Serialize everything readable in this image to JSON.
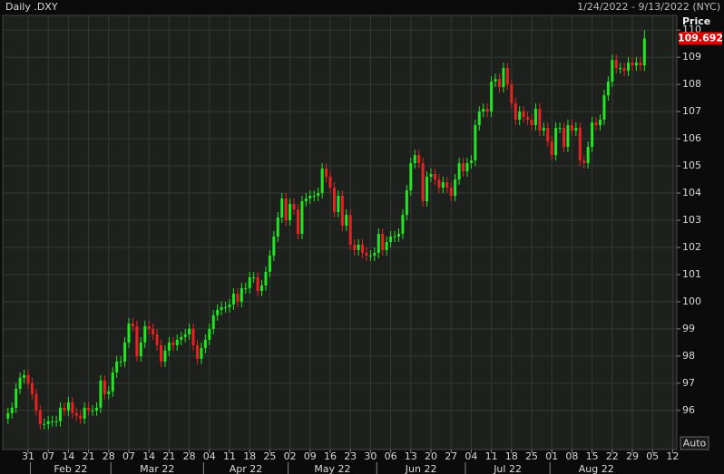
{
  "chart_data": {
    "type": "candlestick",
    "title": "Daily .DXY",
    "subtitle": "1/24/2022 - 9/13/2022 (NYC)",
    "y_label": "Price",
    "scale_button": "Auto",
    "up_color": "#22e622",
    "down_color": "#e62222",
    "grid": true,
    "ylim": [
      94.56,
      110.54
    ],
    "yticks": [
      96,
      97,
      98,
      99,
      100,
      101,
      102,
      103,
      104,
      105,
      106,
      107,
      108,
      109,
      110
    ],
    "xticks": [
      {
        "value": "2022-01-31",
        "label": "31"
      },
      {
        "value": "2022-02-07",
        "label": "07"
      },
      {
        "value": "2022-02-14",
        "label": "14"
      },
      {
        "value": "2022-02-21",
        "label": "21"
      },
      {
        "value": "2022-02-28",
        "label": "28"
      },
      {
        "value": "2022-03-07",
        "label": "07"
      },
      {
        "value": "2022-03-14",
        "label": "14"
      },
      {
        "value": "2022-03-21",
        "label": "21"
      },
      {
        "value": "2022-03-28",
        "label": "28"
      },
      {
        "value": "2022-04-04",
        "label": "04"
      },
      {
        "value": "2022-04-11",
        "label": "11"
      },
      {
        "value": "2022-04-18",
        "label": "18"
      },
      {
        "value": "2022-04-25",
        "label": "25"
      },
      {
        "value": "2022-05-02",
        "label": "02"
      },
      {
        "value": "2022-05-09",
        "label": "09"
      },
      {
        "value": "2022-05-16",
        "label": "16"
      },
      {
        "value": "2022-05-23",
        "label": "23"
      },
      {
        "value": "2022-05-30",
        "label": "30"
      },
      {
        "value": "2022-06-06",
        "label": "06"
      },
      {
        "value": "2022-06-13",
        "label": "13"
      },
      {
        "value": "2022-06-20",
        "label": "20"
      },
      {
        "value": "2022-06-27",
        "label": "27"
      },
      {
        "value": "2022-07-04",
        "label": "04"
      },
      {
        "value": "2022-07-11",
        "label": "11"
      },
      {
        "value": "2022-07-18",
        "label": "18"
      },
      {
        "value": "2022-07-25",
        "label": "25"
      },
      {
        "value": "2022-08-01",
        "label": "01"
      },
      {
        "value": "2022-08-08",
        "label": "08"
      },
      {
        "value": "2022-08-15",
        "label": "15"
      },
      {
        "value": "2022-08-22",
        "label": "22"
      },
      {
        "value": "2022-08-29",
        "label": "29"
      },
      {
        "value": "2022-09-05",
        "label": "05"
      },
      {
        "value": "2022-09-12",
        "label": "12"
      }
    ],
    "months": [
      {
        "value": "2022-02",
        "label": "Feb 22"
      },
      {
        "value": "2022-03",
        "label": "Mar 22"
      },
      {
        "value": "2022-04",
        "label": "Apr 22"
      },
      {
        "value": "2022-05",
        "label": "May 22"
      },
      {
        "value": "2022-06",
        "label": "Jun 22"
      },
      {
        "value": "2022-07",
        "label": "Jul 22"
      },
      {
        "value": "2022-08",
        "label": "Aug 22"
      }
    ],
    "x": [
      "2022-01-24",
      "2022-01-25",
      "2022-01-26",
      "2022-01-27",
      "2022-01-28",
      "2022-01-31",
      "2022-02-01",
      "2022-02-02",
      "2022-02-03",
      "2022-02-04",
      "2022-02-07",
      "2022-02-08",
      "2022-02-09",
      "2022-02-10",
      "2022-02-11",
      "2022-02-14",
      "2022-02-15",
      "2022-02-16",
      "2022-02-17",
      "2022-02-18",
      "2022-02-21",
      "2022-02-22",
      "2022-02-23",
      "2022-02-24",
      "2022-02-25",
      "2022-02-28",
      "2022-03-01",
      "2022-03-02",
      "2022-03-03",
      "2022-03-04",
      "2022-03-07",
      "2022-03-08",
      "2022-03-09",
      "2022-03-10",
      "2022-03-11",
      "2022-03-14",
      "2022-03-15",
      "2022-03-16",
      "2022-03-17",
      "2022-03-18",
      "2022-03-21",
      "2022-03-22",
      "2022-03-23",
      "2022-03-24",
      "2022-03-25",
      "2022-03-28",
      "2022-03-29",
      "2022-03-30",
      "2022-03-31",
      "2022-04-01",
      "2022-04-04",
      "2022-04-05",
      "2022-04-06",
      "2022-04-07",
      "2022-04-08",
      "2022-04-11",
      "2022-04-12",
      "2022-04-13",
      "2022-04-14",
      "2022-04-15",
      "2022-04-18",
      "2022-04-19",
      "2022-04-20",
      "2022-04-21",
      "2022-04-22",
      "2022-04-25",
      "2022-04-26",
      "2022-04-27",
      "2022-04-28",
      "2022-04-29",
      "2022-05-02",
      "2022-05-03",
      "2022-05-04",
      "2022-05-05",
      "2022-05-06",
      "2022-05-09",
      "2022-05-10",
      "2022-05-11",
      "2022-05-12",
      "2022-05-13",
      "2022-05-16",
      "2022-05-17",
      "2022-05-18",
      "2022-05-19",
      "2022-05-20",
      "2022-05-23",
      "2022-05-24",
      "2022-05-25",
      "2022-05-26",
      "2022-05-27",
      "2022-05-30",
      "2022-05-31",
      "2022-06-01",
      "2022-06-02",
      "2022-06-03",
      "2022-06-06",
      "2022-06-07",
      "2022-06-08",
      "2022-06-09",
      "2022-06-10",
      "2022-06-13",
      "2022-06-14",
      "2022-06-15",
      "2022-06-16",
      "2022-06-17",
      "2022-06-20",
      "2022-06-21",
      "2022-06-22",
      "2022-06-23",
      "2022-06-24",
      "2022-06-27",
      "2022-06-28",
      "2022-06-29",
      "2022-06-30",
      "2022-07-01",
      "2022-07-04",
      "2022-07-05",
      "2022-07-06",
      "2022-07-07",
      "2022-07-08",
      "2022-07-11",
      "2022-07-12",
      "2022-07-13",
      "2022-07-14",
      "2022-07-15",
      "2022-07-18",
      "2022-07-19",
      "2022-07-20",
      "2022-07-21",
      "2022-07-22",
      "2022-07-25",
      "2022-07-26",
      "2022-07-27",
      "2022-07-28",
      "2022-07-29",
      "2022-08-01",
      "2022-08-02",
      "2022-08-03",
      "2022-08-04",
      "2022-08-05",
      "2022-08-08",
      "2022-08-09",
      "2022-08-10",
      "2022-08-11",
      "2022-08-12",
      "2022-08-15",
      "2022-08-16",
      "2022-08-17",
      "2022-08-18",
      "2022-08-19",
      "2022-08-22",
      "2022-08-23",
      "2022-08-24",
      "2022-08-25",
      "2022-08-26",
      "2022-08-29",
      "2022-08-30",
      "2022-08-31",
      "2022-09-01"
    ],
    "open": [
      95.7,
      95.9,
      96.1,
      96.8,
      97.2,
      97.3,
      97.0,
      96.6,
      96.0,
      95.5,
      95.5,
      95.6,
      95.6,
      95.6,
      96.1,
      96.0,
      96.3,
      95.9,
      95.8,
      95.7,
      96.1,
      96.0,
      96.0,
      96.1,
      97.1,
      96.6,
      96.7,
      97.4,
      97.8,
      97.8,
      98.5,
      99.2,
      99.1,
      98.0,
      98.5,
      99.1,
      99.0,
      98.8,
      98.4,
      97.8,
      98.2,
      98.5,
      98.4,
      98.6,
      98.7,
      98.8,
      99.0,
      98.4,
      97.9,
      98.3,
      98.6,
      99.0,
      99.5,
      99.7,
      99.8,
      99.8,
      99.9,
      100.3,
      100.0,
      100.5,
      100.5,
      100.9,
      100.9,
      100.4,
      100.6,
      101.1,
      101.7,
      102.4,
      103.1,
      103.8,
      103.0,
      103.6,
      103.4,
      102.5,
      103.7,
      103.8,
      103.9,
      103.9,
      104.0,
      104.9,
      104.6,
      104.2,
      103.3,
      103.9,
      102.8,
      103.2,
      102.1,
      101.9,
      102.1,
      101.8,
      101.7,
      101.7,
      101.8,
      102.5,
      101.9,
      102.2,
      102.4,
      102.4,
      102.5,
      103.2,
      104.1,
      105.1,
      105.4,
      105.1,
      103.7,
      104.6,
      104.7,
      104.5,
      104.2,
      104.4,
      104.2,
      103.9,
      104.5,
      105.1,
      104.8,
      105.1,
      105.2,
      106.5,
      107.0,
      107.1,
      107.0,
      108.1,
      108.2,
      107.9,
      108.6,
      108.0,
      107.3,
      106.7,
      107.0,
      106.8,
      106.7,
      106.5,
      107.1,
      106.3,
      106.4,
      105.9,
      105.4,
      106.4,
      106.4,
      105.7,
      106.5,
      106.3,
      106.4,
      105.2,
      105.1,
      105.7,
      106.6,
      106.5,
      106.7,
      107.6,
      108.1,
      108.9,
      108.6,
      108.6,
      108.5,
      108.8,
      108.7,
      108.8,
      108.7
    ],
    "high": [
      96.1,
      96.3,
      97.0,
      97.4,
      97.5,
      97.5,
      97.2,
      96.8,
      96.2,
      95.7,
      95.8,
      95.8,
      95.8,
      96.3,
      96.3,
      96.5,
      96.5,
      96.1,
      96.0,
      96.3,
      96.3,
      96.2,
      96.3,
      97.3,
      97.3,
      96.9,
      97.6,
      98.0,
      98.0,
      98.7,
      99.4,
      99.4,
      99.3,
      98.7,
      99.3,
      99.3,
      99.2,
      99.0,
      98.6,
      98.4,
      98.7,
      98.7,
      98.8,
      98.9,
      99.0,
      99.2,
      99.2,
      98.6,
      98.5,
      98.8,
      99.2,
      99.7,
      99.9,
      100.0,
      100.0,
      100.1,
      100.5,
      100.5,
      100.7,
      100.7,
      101.1,
      101.1,
      101.1,
      100.8,
      101.3,
      101.9,
      102.6,
      103.3,
      104.0,
      104.0,
      103.8,
      103.8,
      103.6,
      103.9,
      104.0,
      104.1,
      104.1,
      104.2,
      105.1,
      105.1,
      104.8,
      104.4,
      104.1,
      104.1,
      103.4,
      103.4,
      102.3,
      102.3,
      102.3,
      102.0,
      101.9,
      102.0,
      102.7,
      102.7,
      102.4,
      102.6,
      102.6,
      102.7,
      103.4,
      104.3,
      105.3,
      105.6,
      105.6,
      105.3,
      104.8,
      104.9,
      104.9,
      104.7,
      104.6,
      104.6,
      104.4,
      104.7,
      105.3,
      105.3,
      105.3,
      105.4,
      106.7,
      107.2,
      107.3,
      107.3,
      108.3,
      108.4,
      108.4,
      108.8,
      108.8,
      108.2,
      107.5,
      107.2,
      107.2,
      107.0,
      106.9,
      107.3,
      107.3,
      106.6,
      106.6,
      106.1,
      106.6,
      106.6,
      106.6,
      106.7,
      106.7,
      106.6,
      106.6,
      105.4,
      105.9,
      106.8,
      106.8,
      106.9,
      107.8,
      108.3,
      109.1,
      109.1,
      108.8,
      108.8,
      109.0,
      109.0,
      109.0,
      109.0,
      110.0
    ],
    "low": [
      95.5,
      95.7,
      95.9,
      96.6,
      97.0,
      96.8,
      96.4,
      95.8,
      95.3,
      95.3,
      95.3,
      95.4,
      95.4,
      95.4,
      95.8,
      95.8,
      95.7,
      95.6,
      95.5,
      95.5,
      95.8,
      95.8,
      95.8,
      95.9,
      96.4,
      96.4,
      96.5,
      97.2,
      97.6,
      97.6,
      98.3,
      98.9,
      97.8,
      97.8,
      98.3,
      98.8,
      98.6,
      98.2,
      97.6,
      97.6,
      98.0,
      98.2,
      98.2,
      98.4,
      98.5,
      98.6,
      98.2,
      97.7,
      97.7,
      98.1,
      98.4,
      98.8,
      99.3,
      99.5,
      99.6,
      99.6,
      99.7,
      99.8,
      99.8,
      100.3,
      100.3,
      100.7,
      100.2,
      100.2,
      100.4,
      100.9,
      101.5,
      102.2,
      102.9,
      102.8,
      102.8,
      103.2,
      102.3,
      102.3,
      103.5,
      103.6,
      103.7,
      103.7,
      103.8,
      104.4,
      104.0,
      103.1,
      103.1,
      102.6,
      102.6,
      101.9,
      101.7,
      101.7,
      101.6,
      101.5,
      101.5,
      101.5,
      101.6,
      101.7,
      101.7,
      102.0,
      102.2,
      102.2,
      102.3,
      103.0,
      103.9,
      104.9,
      104.9,
      103.5,
      103.5,
      104.4,
      104.3,
      104.0,
      104.0,
      104.0,
      103.7,
      103.7,
      104.3,
      104.6,
      104.6,
      104.9,
      105.0,
      106.3,
      106.8,
      106.8,
      106.8,
      107.9,
      107.7,
      107.7,
      107.8,
      107.1,
      106.5,
      106.5,
      106.6,
      106.5,
      106.3,
      106.3,
      106.1,
      106.1,
      105.7,
      105.2,
      105.2,
      106.2,
      105.5,
      105.5,
      106.1,
      106.1,
      105.0,
      104.9,
      104.9,
      105.5,
      106.3,
      106.3,
      106.5,
      107.4,
      107.9,
      108.4,
      108.4,
      108.3,
      108.3,
      108.5,
      108.5,
      108.5,
      108.5
    ],
    "close": [
      95.9,
      96.1,
      96.8,
      97.2,
      97.3,
      97.0,
      96.6,
      96.0,
      95.5,
      95.5,
      95.6,
      95.6,
      95.6,
      96.1,
      96.0,
      96.3,
      95.9,
      95.8,
      95.7,
      96.1,
      96.0,
      96.0,
      96.1,
      97.1,
      96.6,
      96.7,
      97.4,
      97.8,
      97.8,
      98.5,
      99.2,
      99.1,
      98.0,
      98.5,
      99.1,
      99.0,
      98.8,
      98.4,
      97.8,
      98.2,
      98.5,
      98.4,
      98.6,
      98.7,
      98.8,
      99.0,
      98.4,
      97.9,
      98.3,
      98.6,
      99.0,
      99.5,
      99.7,
      99.8,
      99.8,
      99.9,
      100.3,
      100.0,
      100.5,
      100.5,
      100.9,
      100.9,
      100.4,
      100.6,
      101.1,
      101.7,
      102.4,
      103.1,
      103.8,
      103.0,
      103.6,
      103.4,
      102.5,
      103.7,
      103.8,
      103.9,
      103.9,
      104.0,
      104.9,
      104.6,
      104.2,
      103.3,
      103.9,
      102.8,
      103.2,
      102.1,
      101.9,
      102.1,
      101.8,
      101.7,
      101.7,
      101.8,
      102.5,
      101.9,
      102.2,
      102.4,
      102.4,
      102.5,
      103.2,
      104.1,
      105.1,
      105.4,
      105.1,
      103.7,
      104.6,
      104.7,
      104.5,
      104.2,
      104.4,
      104.2,
      103.9,
      104.5,
      105.1,
      104.8,
      105.1,
      105.2,
      106.5,
      107.0,
      107.1,
      107.0,
      108.1,
      108.2,
      107.9,
      108.6,
      108.0,
      107.3,
      106.7,
      107.0,
      106.8,
      106.7,
      106.5,
      107.1,
      106.3,
      106.4,
      105.9,
      105.4,
      106.4,
      106.4,
      105.7,
      106.5,
      106.3,
      106.4,
      105.2,
      105.1,
      105.7,
      106.6,
      106.5,
      106.7,
      107.6,
      108.1,
      108.9,
      108.6,
      108.6,
      108.5,
      108.8,
      108.7,
      108.8,
      108.7,
      109.692
    ]
  }
}
